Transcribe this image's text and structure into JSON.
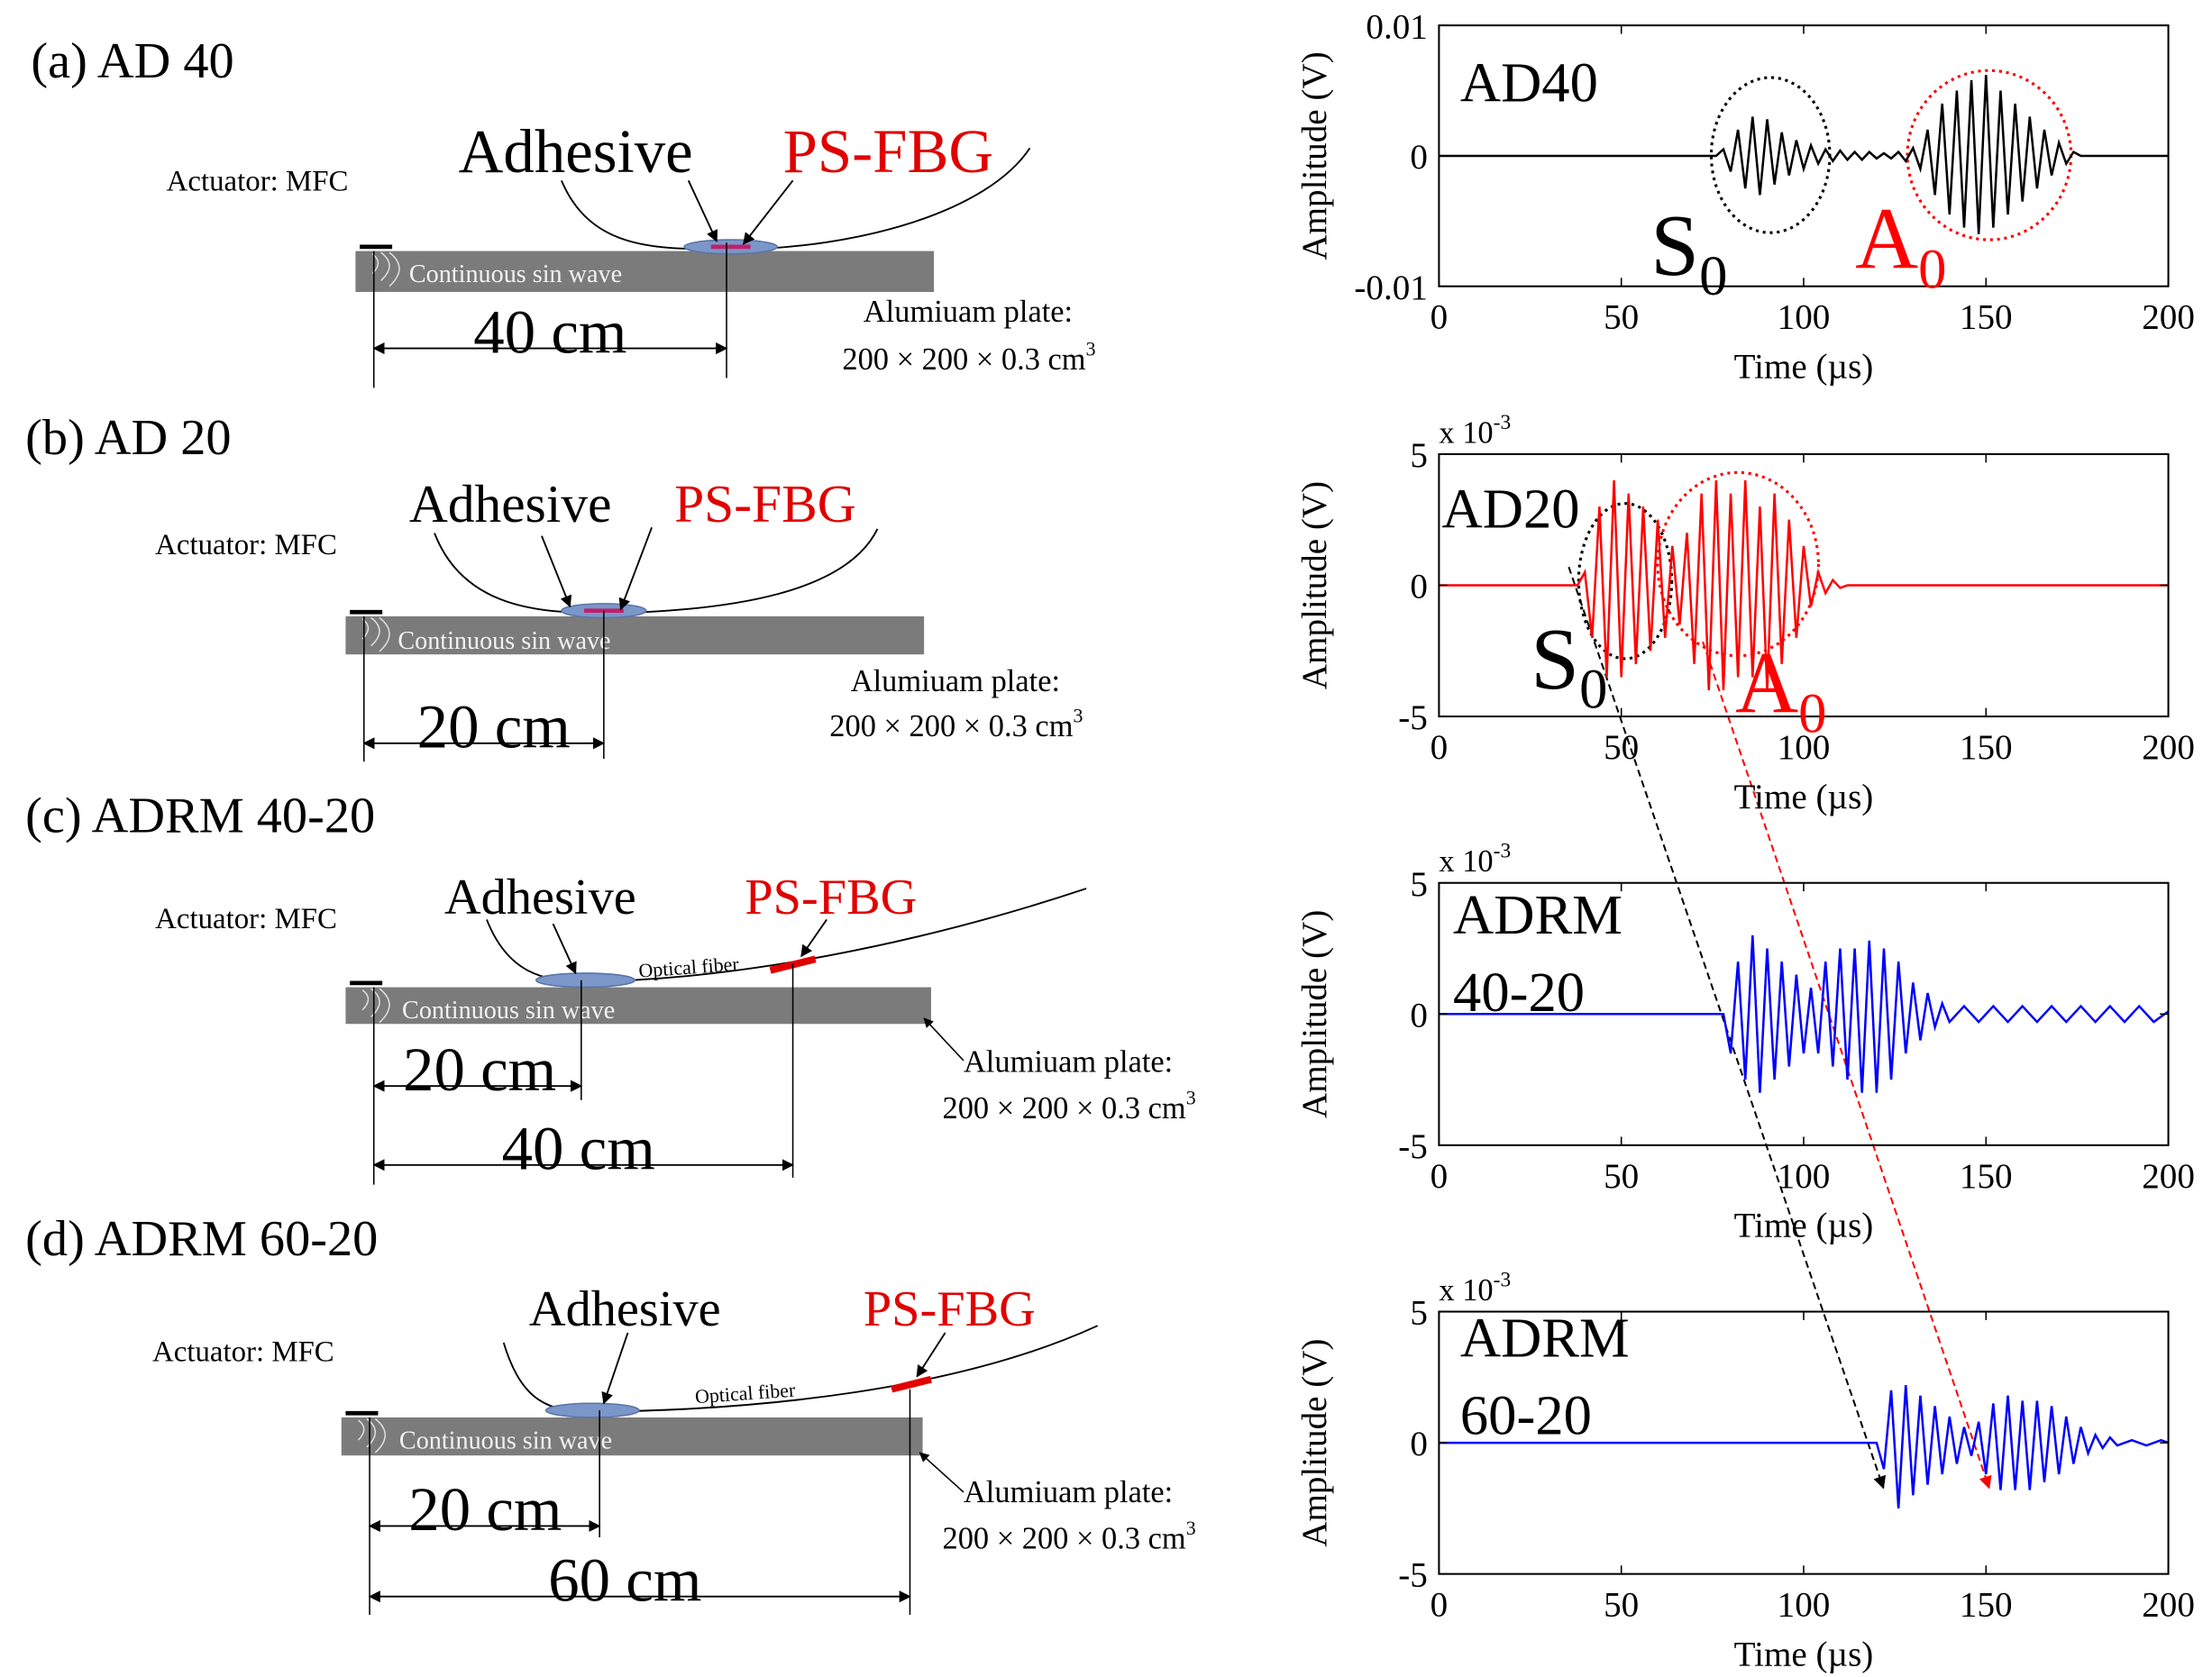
{
  "diagrams": [
    {
      "title": "(a) AD 40",
      "adhesive": "Adhesive",
      "sensor": "PS-FBG",
      "actuator": "Actuator: MFC",
      "wave": "Continuous sin wave",
      "distances": [
        "40 cm"
      ],
      "plate": "Alumiuam plate:",
      "size": {
        "text": "200 × 200 × 0.3 cm",
        "sup": "3"
      }
    },
    {
      "title": "(b) AD 20",
      "adhesive": "Adhesive",
      "sensor": "PS-FBG",
      "actuator": "Actuator: MFC",
      "wave": "Continuous sin wave",
      "distances": [
        "20 cm"
      ],
      "plate": "Alumiuam plate:",
      "size": {
        "text": "200 × 200 × 0.3 cm",
        "sup": "3"
      }
    },
    {
      "title": "(c) ADRM 40-20",
      "adhesive": "Adhesive",
      "sensor": "PS-FBG",
      "fiber": "Optical fiber",
      "actuator": "Actuator: MFC",
      "wave": "Continuous sin wave",
      "distances": [
        "20 cm",
        "40 cm"
      ],
      "plate": "Alumiuam plate:",
      "size": {
        "text": "200 × 200 × 0.3 cm",
        "sup": "3"
      }
    },
    {
      "title": "(d) ADRM 60-20",
      "adhesive": "Adhesive",
      "sensor": "PS-FBG",
      "fiber": "Optical fiber",
      "actuator": "Actuator: MFC",
      "wave": "Continuous sin wave",
      "distances": [
        "20 cm",
        "60 cm"
      ],
      "plate": "Alumiuam plate:",
      "size": {
        "text": "200 × 200 × 0.3 cm",
        "sup": "3"
      }
    }
  ],
  "chart_data": [
    {
      "type": "line",
      "xlabel": "Time (µs)",
      "ylabel": "Amplitude (V)",
      "label_lines": [
        "AD40"
      ],
      "modes": [
        {
          "text": "S",
          "sub": "0",
          "color": "#000000"
        },
        {
          "text": "A",
          "sub": "0",
          "color": "#ff0000"
        }
      ],
      "xlim": [
        0,
        200
      ],
      "xticks": [
        0,
        50,
        100,
        150,
        200
      ],
      "ylim": [
        -0.01,
        0.01
      ],
      "yticks": [
        -0.01,
        0,
        0.01
      ],
      "x": [
        0,
        76,
        78,
        80,
        82,
        84,
        86,
        88,
        90,
        92,
        94,
        96,
        98,
        100,
        102,
        104,
        106,
        108,
        110,
        112,
        114,
        116,
        118,
        120,
        122,
        124,
        126,
        128,
        130,
        132,
        134,
        136,
        138,
        140,
        142,
        144,
        146,
        148,
        150,
        152,
        154,
        156,
        158,
        160,
        162,
        164,
        166,
        168,
        170,
        172,
        174,
        176,
        200
      ],
      "series": [
        {
          "color": "#000000",
          "values": [
            0,
            0,
            0.0005,
            -0.0012,
            0.002,
            -0.0025,
            0.003,
            -0.003,
            0.0028,
            -0.0022,
            0.0018,
            -0.0015,
            0.0012,
            -0.001,
            0.0008,
            -0.0006,
            0.0005,
            -0.0004,
            0.0004,
            -0.0003,
            0.0003,
            -0.0003,
            0.0003,
            -0.0002,
            0.0002,
            -0.0002,
            0.0003,
            -0.0004,
            0.0006,
            -0.001,
            0.002,
            -0.003,
            0.004,
            -0.0045,
            0.005,
            -0.0055,
            0.0058,
            -0.006,
            0.0062,
            -0.0055,
            0.005,
            -0.0045,
            0.004,
            -0.0035,
            0.003,
            -0.0025,
            0.002,
            -0.0015,
            0.001,
            -0.0006,
            0.0003,
            0,
            0
          ]
        }
      ]
    },
    {
      "type": "line",
      "xlabel": "Time (µs)",
      "ylabel": "Amplitude (V)",
      "multiplier": {
        "text": "x 10",
        "sup": "-3"
      },
      "label_lines": [
        "AD20"
      ],
      "modes": [
        {
          "text": "S",
          "sub": "0",
          "color": "#000000"
        },
        {
          "text": "A",
          "sub": "0",
          "color": "#ff0000"
        }
      ],
      "xlim": [
        0,
        200
      ],
      "xticks": [
        0,
        50,
        100,
        150,
        200
      ],
      "ylim": [
        -5,
        5
      ],
      "yticks": [
        -5,
        0,
        5
      ],
      "x": [
        0,
        38,
        40,
        42,
        44,
        46,
        48,
        50,
        52,
        54,
        56,
        58,
        60,
        62,
        64,
        66,
        68,
        70,
        72,
        74,
        76,
        78,
        80,
        82,
        84,
        86,
        88,
        90,
        92,
        94,
        96,
        98,
        100,
        102,
        104,
        106,
        108,
        110,
        112,
        200
      ],
      "series": [
        {
          "color": "#ff0000",
          "values": [
            0,
            0,
            0.5,
            -2,
            3,
            -3.5,
            4,
            -3.5,
            3.5,
            -3,
            3,
            -2.5,
            2.5,
            -2,
            1.5,
            -1.5,
            2,
            -3,
            3.5,
            -4,
            4,
            -4,
            3.5,
            -3.5,
            4,
            -3.5,
            3,
            -4,
            3.5,
            -3,
            2.5,
            -2,
            1.5,
            -0.8,
            0.5,
            -0.3,
            0.2,
            -0.1,
            0,
            0
          ]
        }
      ]
    },
    {
      "type": "line",
      "xlabel": "Time (µs)",
      "ylabel": "Amplitude (V)",
      "multiplier": {
        "text": "x 10",
        "sup": "-3"
      },
      "label_lines": [
        "ADRM",
        "40-20"
      ],
      "xlim": [
        0,
        200
      ],
      "xticks": [
        0,
        50,
        100,
        150,
        200
      ],
      "ylim": [
        -5,
        5
      ],
      "yticks": [
        -5,
        0,
        5
      ],
      "x": [
        0,
        78,
        80,
        82,
        84,
        86,
        88,
        90,
        92,
        94,
        96,
        98,
        100,
        102,
        104,
        106,
        108,
        110,
        112,
        114,
        116,
        118,
        120,
        122,
        124,
        126,
        128,
        130,
        132,
        134,
        136,
        138,
        140,
        144,
        148,
        152,
        156,
        160,
        164,
        168,
        172,
        176,
        180,
        184,
        188,
        192,
        196,
        200
      ],
      "series": [
        {
          "color": "#0000ff",
          "values": [
            0,
            0,
            -1.5,
            2,
            -2.5,
            3,
            -3,
            2.5,
            -2.5,
            2,
            -2,
            1.5,
            -1.5,
            1,
            -1.5,
            2,
            -2,
            2.5,
            -2.5,
            2.5,
            -3,
            2.8,
            -3,
            2.5,
            -2.5,
            2,
            -1.5,
            1.2,
            -1,
            0.8,
            -0.5,
            0.4,
            -0.3,
            0.3,
            -0.3,
            0.3,
            -0.3,
            0.3,
            -0.3,
            0.3,
            -0.3,
            0.3,
            -0.3,
            0.3,
            -0.3,
            0.3,
            -0.3,
            0.1
          ]
        }
      ]
    },
    {
      "type": "line",
      "xlabel": "Time (µs)",
      "ylabel": "Amplitude (V)",
      "multiplier": {
        "text": "x 10",
        "sup": "-3"
      },
      "label_lines": [
        "ADRM",
        "60-20"
      ],
      "xlim": [
        0,
        200
      ],
      "xticks": [
        0,
        50,
        100,
        150,
        200
      ],
      "ylim": [
        -5,
        5
      ],
      "yticks": [
        -5,
        0,
        5
      ],
      "x": [
        0,
        120,
        122,
        124,
        126,
        128,
        130,
        132,
        134,
        136,
        138,
        140,
        142,
        144,
        146,
        148,
        150,
        152,
        154,
        156,
        158,
        160,
        162,
        164,
        166,
        168,
        170,
        172,
        174,
        176,
        178,
        180,
        182,
        184,
        186,
        190,
        194,
        198,
        200
      ],
      "series": [
        {
          "color": "#0000ff",
          "values": [
            0,
            0,
            -1,
            2,
            -2.5,
            2.2,
            -2,
            1.8,
            -1.6,
            1.4,
            -1.2,
            1,
            -0.8,
            0.6,
            -0.5,
            0.8,
            -1.2,
            1.5,
            -1.8,
            1.8,
            -1.8,
            1.6,
            -1.8,
            1.6,
            -1.5,
            1.4,
            -1.2,
            1,
            -0.8,
            0.6,
            -0.4,
            0.3,
            -0.2,
            0.2,
            -0.1,
            0.1,
            -0.1,
            0.1,
            0
          ]
        }
      ]
    }
  ]
}
